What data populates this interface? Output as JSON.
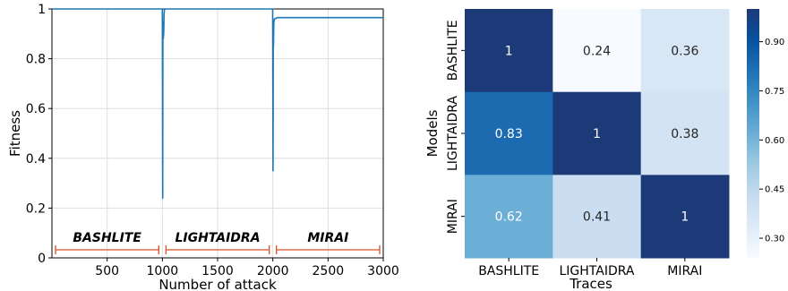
{
  "chart_data": [
    {
      "type": "line",
      "xlabel": "Number of attack",
      "ylabel": "Fitness",
      "xlim": [
        0,
        3000
      ],
      "ylim": [
        0,
        1
      ],
      "xticks": [
        500,
        1000,
        1500,
        2000,
        2500,
        3000
      ],
      "yticks": [
        0,
        0.2,
        0.4,
        0.6,
        0.8,
        1
      ],
      "grid": true,
      "series": [
        {
          "color": "#1f77b4",
          "x": [
            0,
            990,
            1000,
            1003,
            1005,
            1008,
            1012,
            1015,
            1020,
            1030,
            1999,
            2002,
            2004,
            2006,
            2008,
            2010,
            2015,
            2020,
            2040,
            2100,
            2300,
            2500,
            2700,
            2900,
            3000
          ],
          "y": [
            1,
            1,
            1,
            0.24,
            0.95,
            0.88,
            0.9,
            0.98,
            1,
            1,
            1,
            0.35,
            0.9,
            0.85,
            0.93,
            0.95,
            0.96,
            0.96,
            0.965,
            0.965,
            0.965,
            0.965,
            0.965,
            0.965,
            0.965
          ]
        }
      ],
      "segments": [
        {
          "label": "BASHLITE",
          "x_start": 0,
          "x_end": 1000
        },
        {
          "label": "LIGHTAIDRA",
          "x_start": 1000,
          "x_end": 2000
        },
        {
          "label": "MIRAI",
          "x_start": 2000,
          "x_end": 3000
        }
      ],
      "segment_color": "#d9522b"
    },
    {
      "type": "heatmap",
      "xlabel": "Traces",
      "ylabel": "Models",
      "x_categories": [
        "BASHLITE",
        "LIGHTAIDRA",
        "MIRAI"
      ],
      "y_categories": [
        "BASHLITE",
        "LIGHTAIDRA",
        "MIRAI"
      ],
      "values": [
        [
          1,
          0.24,
          0.36
        ],
        [
          0.83,
          1,
          0.38
        ],
        [
          0.62,
          0.41,
          1
        ]
      ],
      "value_labels": [
        [
          "1",
          "0.24",
          "0.36"
        ],
        [
          "0.83",
          "1",
          "0.38"
        ],
        [
          "0.62",
          "0.41",
          "1"
        ]
      ],
      "colormap": "Blues",
      "vmin": 0.24,
      "vmax": 1,
      "colorbar_ticks": [
        "0.30",
        "0.45",
        "0.60",
        "0.75",
        "0.90"
      ]
    }
  ]
}
